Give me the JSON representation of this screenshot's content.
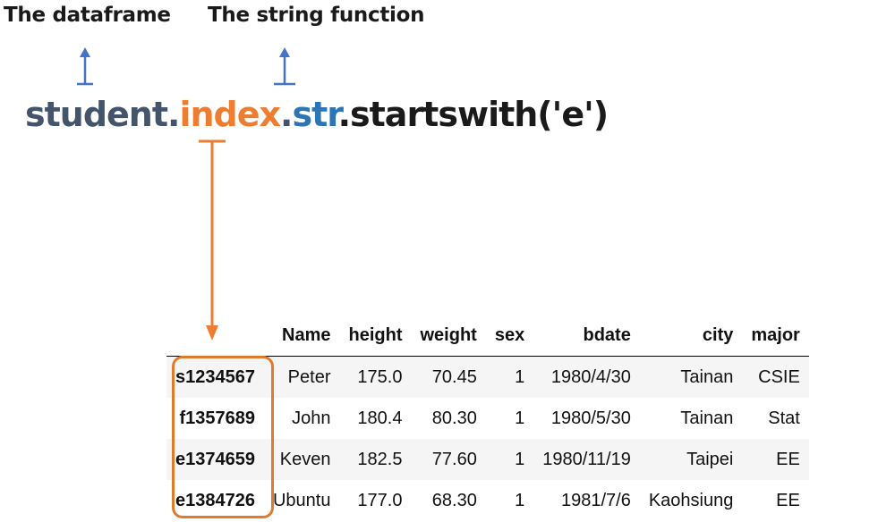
{
  "labels": {
    "dataframe": "The dataframe",
    "string_function": "The string function"
  },
  "code": {
    "object": "student",
    "dot1": ".",
    "attribute": "index",
    "dot2": ".",
    "accessor": "str",
    "method": ".startswith('e')"
  },
  "colors": {
    "object": "#44546a",
    "attribute": "#ed7d31",
    "accessor": "#2e75b6",
    "blue_arrow": "#4472c4",
    "orange_arrow": "#ed7d31"
  },
  "table": {
    "columns": [
      "",
      "Name",
      "height",
      "weight",
      "sex",
      "bdate",
      "city",
      "major"
    ],
    "rows": [
      {
        "index": "s1234567",
        "cells": [
          "Peter",
          "175.0",
          "70.45",
          "1",
          "1980/4/30",
          "Tainan",
          "CSIE"
        ]
      },
      {
        "index": "f1357689",
        "cells": [
          "John",
          "180.4",
          "80.30",
          "1",
          "1980/5/30",
          "Tainan",
          "Stat"
        ]
      },
      {
        "index": "e1374659",
        "cells": [
          "Keven",
          "182.5",
          "77.60",
          "1",
          "1980/11/19",
          "Taipei",
          "EE"
        ]
      },
      {
        "index": "e1384726",
        "cells": [
          "Ubuntu",
          "177.0",
          "68.30",
          "1",
          "1981/7/6",
          "Kaohsiung",
          "EE"
        ]
      }
    ]
  }
}
